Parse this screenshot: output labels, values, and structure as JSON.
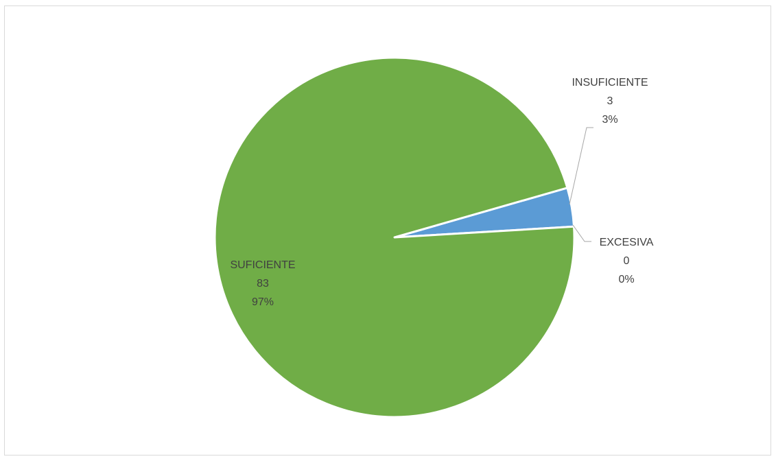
{
  "chart_data": {
    "type": "pie",
    "categories": [
      "INSUFICIENTE",
      "EXCESIVA",
      "SUFICIENTE"
    ],
    "values": [
      3,
      0,
      83
    ],
    "percent_labels": [
      "3%",
      "0%",
      "97%"
    ],
    "colors": [
      "#5b9bd5",
      "#ed7d31",
      "#70ad47"
    ],
    "legend": "none",
    "data_labels": "category, value, percentage"
  }
}
